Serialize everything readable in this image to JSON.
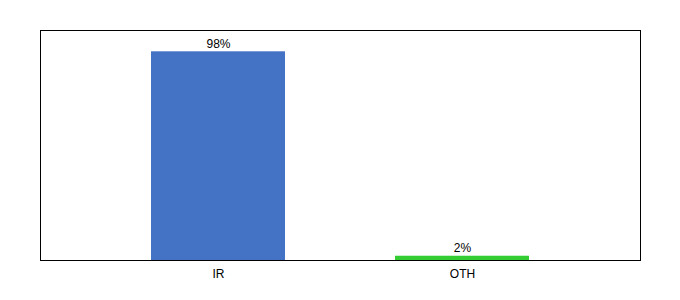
{
  "chart_data": {
    "type": "bar",
    "categories": [
      "IR",
      "OTH"
    ],
    "values": [
      98,
      2
    ],
    "value_labels": [
      "98%",
      "2%"
    ],
    "colors": [
      "#4472c4",
      "#33cc33"
    ],
    "ylim": [
      0,
      108
    ],
    "data_labels": true,
    "tick_labels": "x"
  }
}
